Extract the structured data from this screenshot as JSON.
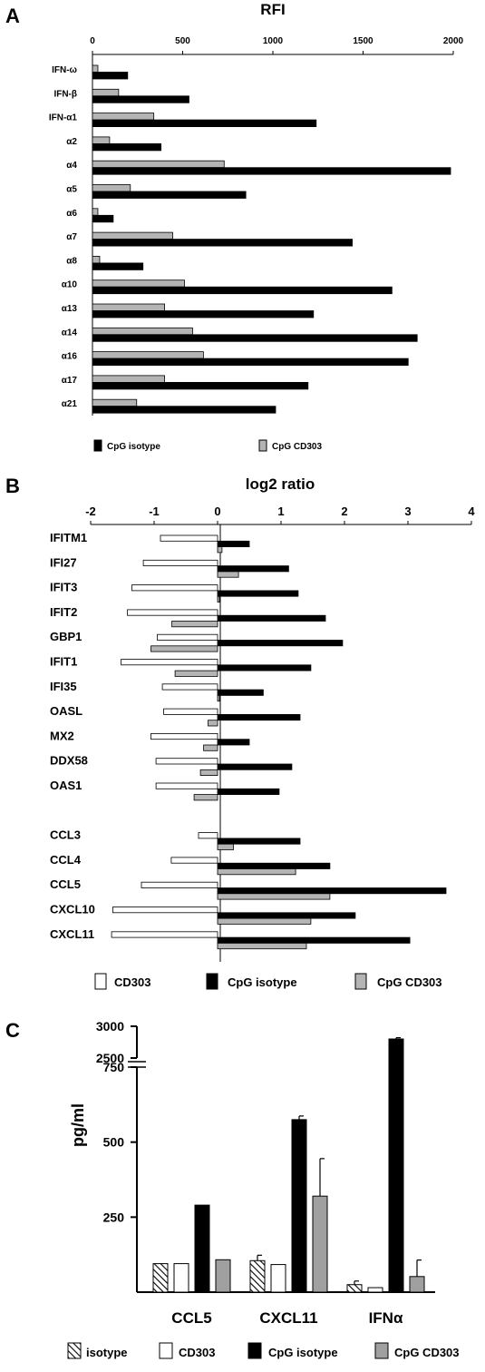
{
  "colors": {
    "cpg_isotype": "#000000",
    "cpg_cd303": "#b4b4b4",
    "cd303": "#ffffff",
    "isotype": "hatched"
  },
  "chart_data": [
    {
      "panel": "A",
      "type": "bar",
      "orientation": "horizontal",
      "title": "RFI",
      "xticks": [
        "0",
        "500",
        "1000",
        "1500",
        "2000"
      ],
      "xlim": [
        0,
        2000
      ],
      "categories": [
        "IFN-ω",
        "IFN-β",
        "IFN-α1",
        "α2",
        "α4",
        "α5",
        "α6",
        "α7",
        "α8",
        "α10",
        "α13",
        "α14",
        "α16",
        "α17",
        "α21"
      ],
      "series": [
        {
          "name": "CpG CD303",
          "values": [
            30,
            145,
            340,
            95,
            730,
            210,
            30,
            445,
            40,
            510,
            400,
            555,
            615,
            400,
            245
          ]
        },
        {
          "name": "CpG isotype",
          "values": [
            195,
            535,
            1240,
            380,
            1985,
            850,
            115,
            1440,
            280,
            1660,
            1225,
            1800,
            1750,
            1195,
            1015
          ]
        }
      ],
      "legend": [
        "CpG isotype",
        "CpG CD303"
      ],
      "legend_position": "bottom"
    },
    {
      "panel": "B",
      "type": "bar",
      "orientation": "horizontal",
      "title": "log2 ratio",
      "xticks": [
        "-2",
        "-1",
        "0",
        "1",
        "2",
        "3",
        "4"
      ],
      "xlim": [
        -2,
        4
      ],
      "categories": [
        "IFITM1",
        "IFI27",
        "IFIT3",
        "IFIT2",
        "GBP1",
        "IFIT1",
        "IFI35",
        "OASL",
        "MX2",
        "DDX58",
        "OAS1",
        "",
        "CCL3",
        "CCL4",
        "CCL5",
        "CXCL10",
        "CXCL11"
      ],
      "series": [
        {
          "name": "CD303",
          "values": [
            -0.9,
            -1.17,
            -1.35,
            -1.42,
            -0.95,
            -1.52,
            -0.87,
            -0.85,
            -1.05,
            -0.97,
            -0.97,
            null,
            -0.3,
            -0.73,
            -1.2,
            -1.65,
            -1.67
          ]
        },
        {
          "name": "CpG isotype",
          "values": [
            0.5,
            1.12,
            1.27,
            1.7,
            1.97,
            1.47,
            0.72,
            1.3,
            0.5,
            1.17,
            0.97,
            null,
            1.3,
            1.77,
            3.6,
            2.17,
            3.03
          ]
        },
        {
          "name": "CpG CD303",
          "values": [
            0.07,
            0.33,
            0.03,
            -0.72,
            -1.05,
            -0.67,
            0.03,
            -0.15,
            -0.22,
            -0.27,
            -0.37,
            null,
            0.25,
            1.23,
            1.77,
            1.47,
            1.4
          ]
        }
      ],
      "legend": [
        "CD303",
        "CpG isotype",
        "CpG CD303"
      ],
      "legend_position": "bottom"
    },
    {
      "panel": "C",
      "type": "bar",
      "orientation": "vertical",
      "ylabel": "pg/ml",
      "yticks": [
        "250",
        "500",
        "750",
        "2500",
        "3000"
      ],
      "ylim": [
        0,
        3000
      ],
      "y_axis_break": [
        750,
        2500
      ],
      "categories": [
        "CCL5",
        "CXCL11",
        "IFNα"
      ],
      "series": [
        {
          "name": "isotype",
          "values": [
            95,
            105,
            25
          ],
          "errors": [
            0,
            18,
            12
          ]
        },
        {
          "name": "CD303",
          "values": [
            95,
            92,
            15
          ],
          "errors": [
            0,
            0,
            0
          ]
        },
        {
          "name": "CpG isotype",
          "values": [
            290,
            575,
            2800
          ],
          "errors": [
            0,
            12,
            20
          ]
        },
        {
          "name": "CpG CD303",
          "values": [
            108,
            320,
            52
          ],
          "errors": [
            0,
            125,
            55
          ]
        }
      ],
      "legend": [
        "isotype",
        "CD303",
        "CpG isotype",
        "CpG CD303"
      ],
      "legend_position": "bottom"
    }
  ]
}
